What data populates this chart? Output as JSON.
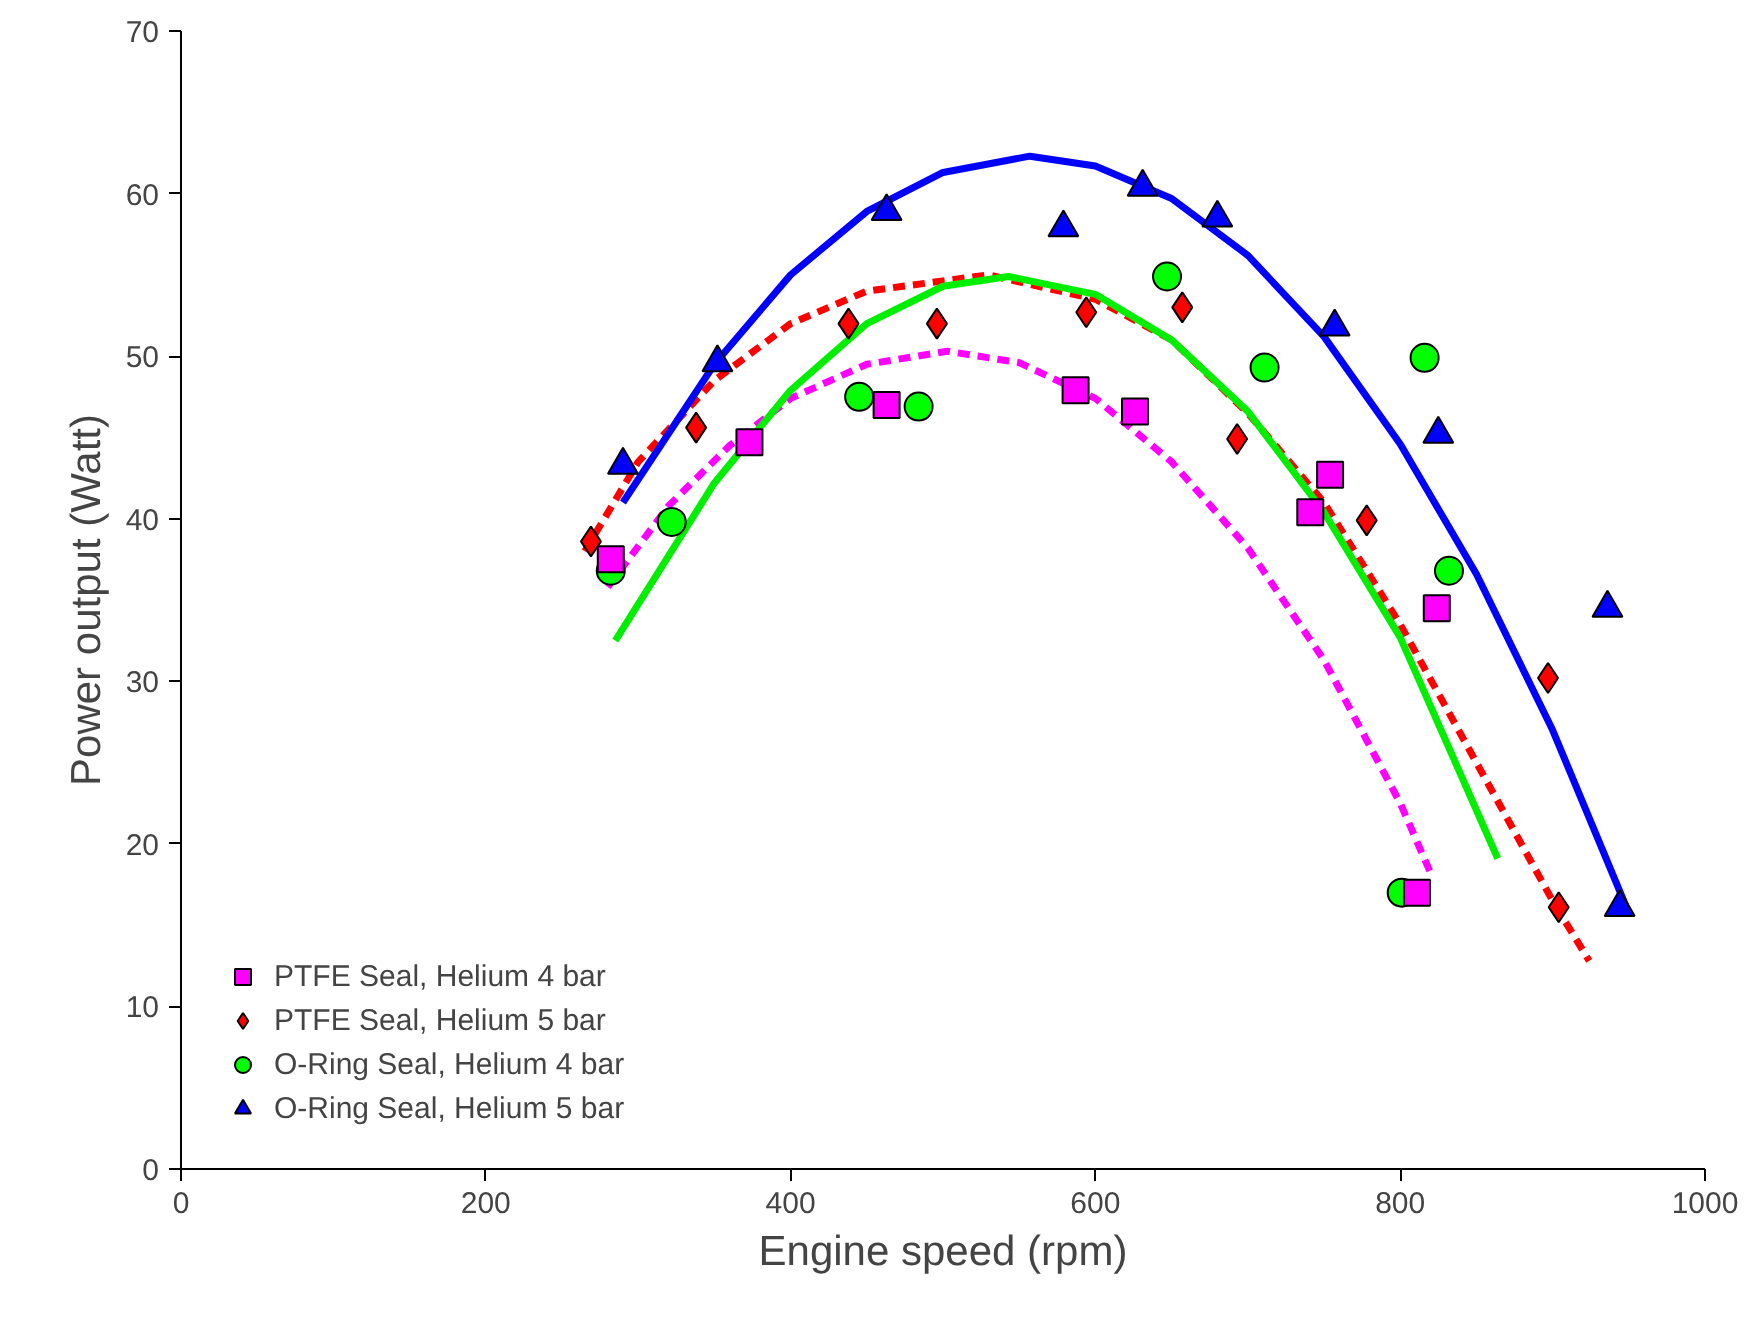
{
  "chart_data": {
    "type": "scatter",
    "xlabel": "Engine speed (rpm)",
    "ylabel": "Power output (Watt)",
    "xlim": [
      0,
      1000
    ],
    "ylim": [
      0,
      70
    ],
    "xticks": [
      0,
      200,
      400,
      600,
      800,
      1000
    ],
    "yticks": [
      0,
      10,
      20,
      30,
      40,
      50,
      60,
      70
    ],
    "grid": false,
    "legend": "bottom left",
    "series": [
      {
        "name": "PTFE Seal, Helium 4 bar",
        "color": "#ff00ff",
        "marker": "square",
        "x": [
          282,
          373,
          463,
          587,
          626,
          741,
          754,
          811,
          824
        ],
        "values": [
          37.5,
          44.7,
          47.0,
          47.9,
          46.6,
          40.4,
          42.7,
          17.0,
          34.5
        ]
      },
      {
        "name": "PTFE Seal, Helium 5 bar",
        "color": "#ff0000",
        "marker": "diamond",
        "x": [
          269,
          338,
          438,
          496,
          594,
          657,
          693,
          778,
          897,
          904
        ],
        "values": [
          38.6,
          45.6,
          52.0,
          52.0,
          52.7,
          53.0,
          44.9,
          39.9,
          30.2,
          16.1
        ]
      },
      {
        "name": "O-Ring Seal, Helium 4 bar",
        "color": "#00ff00",
        "marker": "circle",
        "x": [
          282,
          322,
          445,
          484,
          647,
          711,
          801,
          816,
          832
        ],
        "values": [
          36.8,
          39.8,
          47.5,
          46.9,
          54.9,
          49.3,
          17.0,
          49.9,
          36.8
        ]
      },
      {
        "name": "O-Ring Seal, Helium 5 bar",
        "color": "#0000ff",
        "marker": "triangle",
        "x": [
          290,
          352,
          463,
          579,
          631,
          680,
          757,
          825,
          936,
          944
        ],
        "values": [
          43.3,
          49.6,
          58.9,
          57.9,
          60.4,
          58.5,
          51.8,
          45.2,
          34.5,
          16.1
        ]
      },
      {
        "type": "line",
        "color": "#ff00ff",
        "line_style": "dashed",
        "x": [
          280,
          320,
          360,
          400,
          450,
          503,
          550,
          600,
          650,
          700,
          750,
          800,
          820
        ],
        "values": [
          35.8,
          40.8,
          44.5,
          47.4,
          49.5,
          50.3,
          49.6,
          47.4,
          43.5,
          38.2,
          31.3,
          22.5,
          18.2
        ]
      },
      {
        "type": "line",
        "color": "#ff0000",
        "line_style": "dashed",
        "x": [
          265,
          300,
          350,
          400,
          450,
          530,
          600,
          650,
          700,
          750,
          800,
          850,
          900,
          924
        ],
        "values": [
          38.0,
          43.5,
          48.5,
          52.0,
          54.0,
          55.0,
          53.5,
          51.0,
          46.5,
          41.0,
          33.5,
          25.0,
          16.5,
          12.8
        ]
      },
      {
        "type": "line",
        "color": "#00ee00",
        "line_style": "solid",
        "x": [
          285,
          350,
          400,
          450,
          500,
          543,
          600,
          650,
          700,
          750,
          800,
          864
        ],
        "values": [
          32.5,
          42.2,
          47.9,
          52.0,
          54.3,
          54.9,
          53.8,
          51.0,
          46.6,
          40.4,
          32.7,
          19.1
        ]
      },
      {
        "type": "line",
        "color": "#0000ff",
        "line_style": "solid",
        "x": [
          290,
          350,
          400,
          450,
          500,
          557,
          600,
          650,
          700,
          750,
          800,
          850,
          900,
          948
        ],
        "values": [
          41.0,
          49.5,
          55.0,
          58.9,
          61.3,
          62.3,
          61.7,
          59.7,
          56.2,
          51.2,
          44.6,
          36.6,
          27.0,
          16.2
        ]
      }
    ]
  }
}
